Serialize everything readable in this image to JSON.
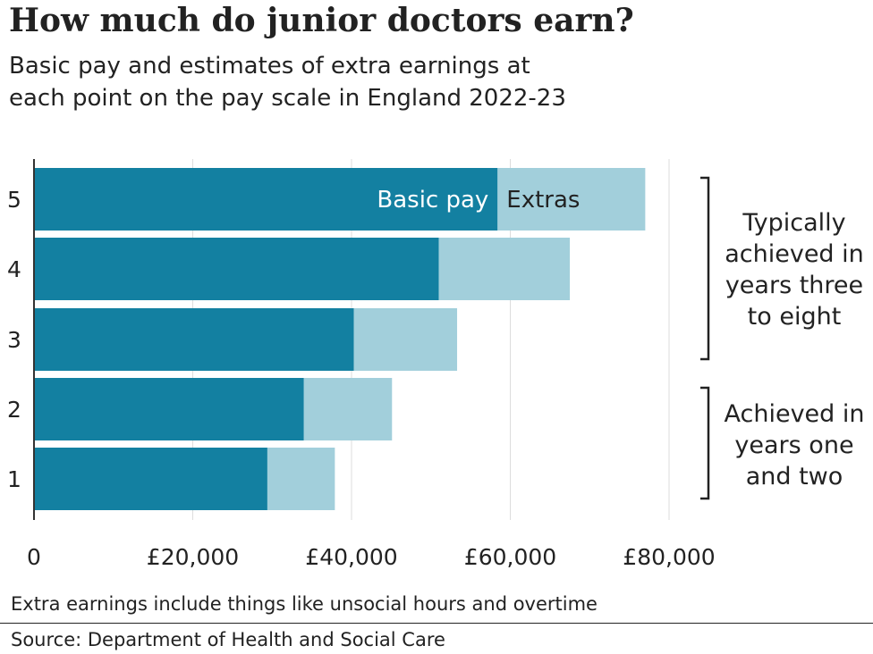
{
  "title": "How much do junior doctors earn?",
  "subtitle_lines": [
    "Basic pay and estimates of extra earnings at",
    "each point on the pay scale in England 2022-23"
  ],
  "chart_data": {
    "type": "bar",
    "orientation": "horizontal",
    "stacked": true,
    "categories": [
      "5",
      "4",
      "3",
      "2",
      "1"
    ],
    "series": [
      {
        "name": "Basic pay",
        "values": [
          58400,
          51000,
          40300,
          34000,
          29400
        ],
        "color": "#1380a1"
      },
      {
        "name": "Extras",
        "values": [
          18600,
          16500,
          13000,
          11100,
          8500
        ],
        "color": "#a2cfdb"
      }
    ],
    "xlim": [
      0,
      80000
    ],
    "xticks": [
      0,
      20000,
      40000,
      60000,
      80000
    ],
    "xtick_labels": [
      "0",
      "£20,000",
      "£40,000",
      "£60,000",
      "£80,000"
    ],
    "grid": true,
    "legend": "inline labels inside top bar"
  },
  "brackets": [
    {
      "lines": [
        "Typically",
        "achieved in",
        "years three",
        "to eight"
      ],
      "covers": [
        "5",
        "4",
        "3"
      ]
    },
    {
      "lines": [
        "Achieved in",
        "years one",
        "and two"
      ],
      "covers": [
        "2",
        "1"
      ]
    }
  ],
  "footnote": "Extra earnings include things like unsocial hours and overtime",
  "source": "Source: Department of Health and Social Care",
  "colors": {
    "basic_pay": "#1380a1",
    "extras": "#a2cfdb",
    "text": "#222222",
    "grid": "#dddddd"
  }
}
